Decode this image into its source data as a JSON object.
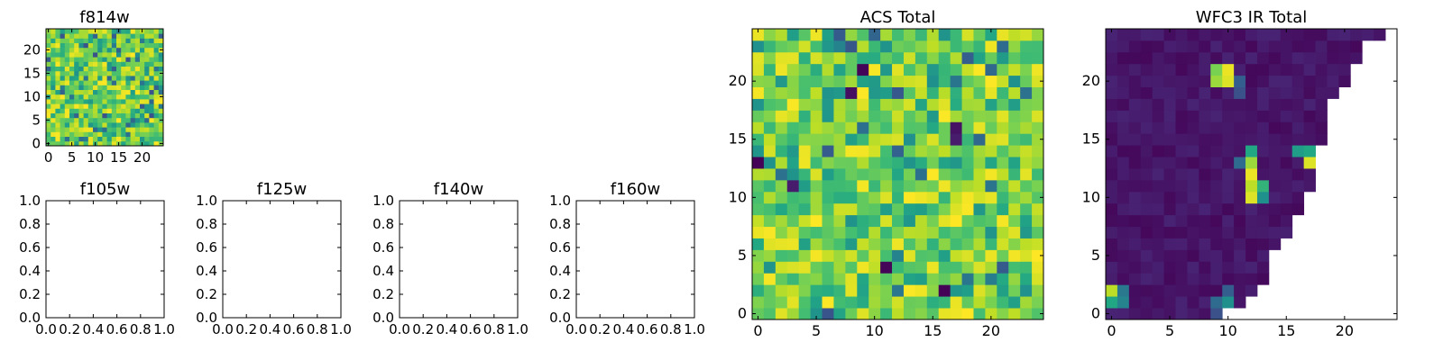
{
  "chart_data": [
    {
      "id": "f814w",
      "type": "heatmap",
      "title": "f814w",
      "grid_size": [
        25,
        25
      ],
      "xlim": [
        -0.5,
        24.5
      ],
      "ylim": [
        -0.5,
        24.5
      ],
      "x_ticks": [
        "0",
        "5",
        "10",
        "15",
        "20"
      ],
      "y_ticks": [
        "0",
        "5",
        "10",
        "15",
        "20"
      ],
      "colormap": "viridis",
      "value_range": [
        0,
        1
      ],
      "pattern": "random noise, mostly bright green-yellow",
      "bright_fraction_mean": 0.78,
      "grid": false
    },
    {
      "id": "f105w",
      "type": "empty",
      "title": "f105w",
      "xlim": [
        0,
        1
      ],
      "ylim": [
        0,
        1
      ],
      "x_ticks": [
        "0.0",
        "0.2",
        "0.4",
        "0.6",
        "0.8",
        "1.0"
      ],
      "y_ticks": [
        "0.0",
        "0.2",
        "0.4",
        "0.6",
        "0.8",
        "1.0"
      ]
    },
    {
      "id": "f125w",
      "type": "empty",
      "title": "f125w",
      "xlim": [
        0,
        1
      ],
      "ylim": [
        0,
        1
      ],
      "x_ticks": [
        "0.0",
        "0.2",
        "0.4",
        "0.6",
        "0.8",
        "1.0"
      ],
      "y_ticks": [
        "0.0",
        "0.2",
        "0.4",
        "0.6",
        "0.8",
        "1.0"
      ]
    },
    {
      "id": "f140w",
      "type": "empty",
      "title": "f140w",
      "xlim": [
        0,
        1
      ],
      "ylim": [
        0,
        1
      ],
      "x_ticks": [
        "0.0",
        "0.2",
        "0.4",
        "0.6",
        "0.8",
        "1.0"
      ],
      "y_ticks": [
        "0.0",
        "0.2",
        "0.4",
        "0.6",
        "0.8",
        "1.0"
      ]
    },
    {
      "id": "f160w",
      "type": "empty",
      "title": "f160w",
      "xlim": [
        0,
        1
      ],
      "ylim": [
        0,
        1
      ],
      "x_ticks": [
        "0.0",
        "0.2",
        "0.4",
        "0.6",
        "0.8",
        "1.0"
      ],
      "y_ticks": [
        "0.0",
        "0.2",
        "0.4",
        "0.6",
        "0.8",
        "1.0"
      ]
    },
    {
      "id": "acs_total",
      "type": "heatmap",
      "title": "ACS Total",
      "grid_size": [
        25,
        25
      ],
      "xlim": [
        -0.5,
        24.5
      ],
      "ylim": [
        -0.5,
        24.5
      ],
      "x_ticks": [
        "0",
        "5",
        "10",
        "15",
        "20"
      ],
      "y_ticks": [
        "0",
        "5",
        "10",
        "15",
        "20"
      ],
      "colormap": "viridis",
      "value_range": [
        0,
        1
      ],
      "pattern": "random noise, mostly bright green-yellow",
      "bright_fraction_mean": 0.75,
      "dark_cells": [
        [
          11,
          4
        ],
        [
          16,
          2
        ],
        [
          3,
          11
        ],
        [
          17,
          16
        ],
        [
          17,
          15
        ],
        [
          0,
          13
        ],
        [
          8,
          19
        ],
        [
          9,
          21
        ]
      ],
      "grid": false
    },
    {
      "id": "wfc3_ir_total",
      "type": "heatmap",
      "title": "WFC3 IR Total",
      "grid_size": [
        25,
        25
      ],
      "xlim": [
        -0.5,
        24.5
      ],
      "ylim": [
        -0.5,
        24.5
      ],
      "x_ticks": [
        "0",
        "5",
        "10",
        "15",
        "20"
      ],
      "y_ticks": [
        "0",
        "5",
        "10",
        "15",
        "20"
      ],
      "colormap": "viridis",
      "value_range": [
        0,
        1
      ],
      "pattern": "upper-left triangular coverage, mostly dark purple; upper-right masked (white)",
      "coverage_row_max_col": [
        9,
        11,
        12,
        13,
        13,
        13,
        14,
        15,
        15,
        16,
        16,
        17,
        17,
        17,
        17,
        18,
        18,
        18,
        18,
        19,
        20,
        20,
        21,
        21,
        23
      ],
      "bright_cells": [
        {
          "x": 9,
          "y": 20,
          "v": 0.85
        },
        {
          "x": 10,
          "y": 20,
          "v": 0.95
        },
        {
          "x": 9,
          "y": 21,
          "v": 0.8
        },
        {
          "x": 10,
          "y": 21,
          "v": 0.97
        },
        {
          "x": 12,
          "y": 10,
          "v": 0.95
        },
        {
          "x": 12,
          "y": 11,
          "v": 0.9
        },
        {
          "x": 12,
          "y": 12,
          "v": 0.97
        },
        {
          "x": 12,
          "y": 13,
          "v": 0.85
        },
        {
          "x": 12,
          "y": 14,
          "v": 0.6
        },
        {
          "x": 13,
          "y": 11,
          "v": 0.65
        },
        {
          "x": 13,
          "y": 10,
          "v": 0.5
        },
        {
          "x": 11,
          "y": 13,
          "v": 0.35
        },
        {
          "x": 16,
          "y": 14,
          "v": 0.55
        },
        {
          "x": 17,
          "y": 14,
          "v": 0.6
        },
        {
          "x": 17,
          "y": 13,
          "v": 0.95
        },
        {
          "x": 0,
          "y": 2,
          "v": 0.9
        },
        {
          "x": 0,
          "y": 1,
          "v": 0.6
        },
        {
          "x": 1,
          "y": 2,
          "v": 0.4
        },
        {
          "x": 1,
          "y": 1,
          "v": 0.45
        },
        {
          "x": 9,
          "y": 1,
          "v": 0.35
        },
        {
          "x": 10,
          "y": 1,
          "v": 0.5
        },
        {
          "x": 10,
          "y": 0,
          "v": 0.45
        },
        {
          "x": 10,
          "y": 2,
          "v": 0.3
        },
        {
          "x": 9,
          "y": 0,
          "v": 0.25
        },
        {
          "x": 11,
          "y": 19,
          "v": 0.25
        },
        {
          "x": 11,
          "y": 20,
          "v": 0.3
        }
      ],
      "grid": false
    }
  ]
}
